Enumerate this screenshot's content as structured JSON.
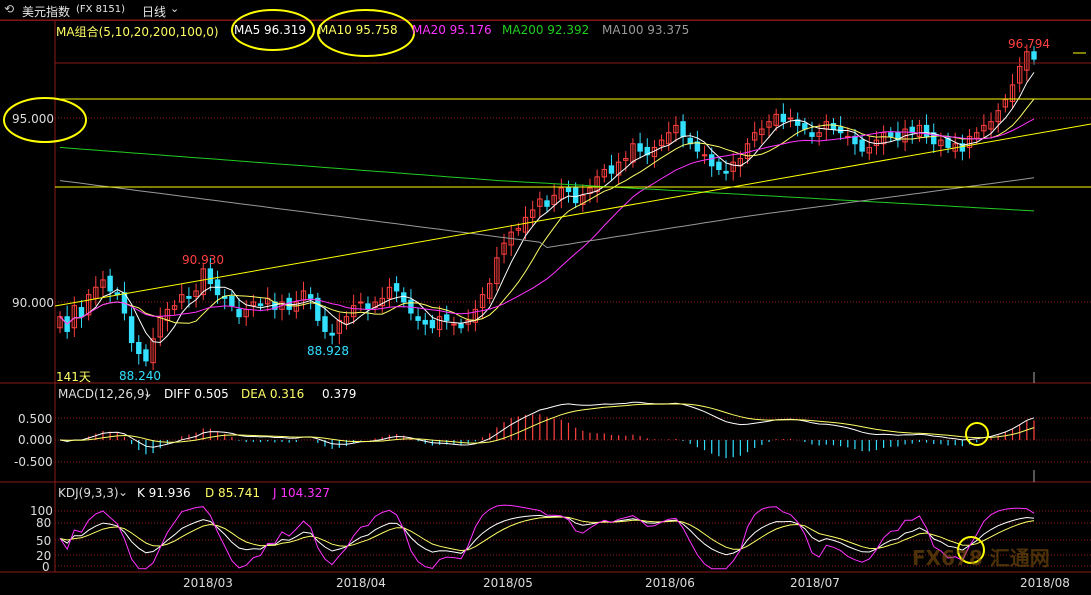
{
  "header": {
    "back_icon": "back-arrow-icon",
    "title": "美元指数",
    "code": "(FX 8151)",
    "period": "日线",
    "period_icon": "chevron-down-icon"
  },
  "main_panel": {
    "indicator_label": "MA组合(5,10,20,200,100,0)",
    "ma5": "MA5 96.319",
    "ma10": "MA10 95.758",
    "ma20": "MA20 95.176",
    "ma200": "MA200 92.392",
    "ma100": "MA100 93.375",
    "y_ticks": [
      "95.000",
      "90.000"
    ],
    "annotations": {
      "high_label": "96.794",
      "peak_label": "90.930",
      "low1_label": "88.240",
      "low2_label": "88.928",
      "days_label": "141天"
    }
  },
  "macd_panel": {
    "indicator_label": "MACD(12,26,9)",
    "diff": "DIFF 0.505",
    "dea": "DEA 0.316",
    "macd": "0.379",
    "y_ticks": [
      "0.500",
      "0.000",
      "-0.500"
    ]
  },
  "kdj_panel": {
    "indicator_label": "KDJ(9,3,3)",
    "k": "K 91.936",
    "d": "D 85.741",
    "j": "J 104.327",
    "y_ticks": [
      "100",
      "80",
      "50",
      "20",
      "0"
    ]
  },
  "x_axis": {
    "ticks": [
      "2018/03",
      "2018/04",
      "2018/05",
      "2018/06",
      "2018/07",
      "2018/08"
    ]
  },
  "watermark": "FX678 汇通网",
  "colors": {
    "up": "#ff4040",
    "down": "#33e0ff",
    "ma5": "#ffffff",
    "ma10": "#ffff66",
    "ma20": "#ff33ff",
    "ma200": "#22cc22",
    "ma100": "#999999",
    "grid": "#8b1a1a",
    "highlight": "#ffff00"
  },
  "chart_data": {
    "type": "candlestick",
    "title": "美元指数 (FX 8151) 日线",
    "x_range": [
      "2018/02",
      "2018/08"
    ],
    "price_range": [
      87.5,
      97.2
    ],
    "closes": [
      89.6,
      89.2,
      89.9,
      89.6,
      90.2,
      90.4,
      90.6,
      90.3,
      90.2,
      89.7,
      88.9,
      88.6,
      88.4,
      89.0,
      89.6,
      89.8,
      89.9,
      90.2,
      90.1,
      90.3,
      90.9,
      90.5,
      90.2,
      90.1,
      89.9,
      89.6,
      89.8,
      90.0,
      89.9,
      90.1,
      89.8,
      90.0,
      89.8,
      90.0,
      90.3,
      90.1,
      89.5,
      89.2,
      89.1,
      89.5,
      89.6,
      89.9,
      90.0,
      89.8,
      90.0,
      90.1,
      90.4,
      90.3,
      90.0,
      89.7,
      89.5,
      89.4,
      89.3,
      89.6,
      89.5,
      89.4,
      89.3,
      89.5,
      89.8,
      90.2,
      90.5,
      91.2,
      91.6,
      91.9,
      92.0,
      92.3,
      92.5,
      92.8,
      92.6,
      92.9,
      93.1,
      93.0,
      92.7,
      92.9,
      93.1,
      93.4,
      93.6,
      93.5,
      93.8,
      93.9,
      94.3,
      94.1,
      94.0,
      94.2,
      94.4,
      94.6,
      94.8,
      94.5,
      94.3,
      94.1,
      94.0,
      93.7,
      93.6,
      93.5,
      93.8,
      93.9,
      94.3,
      94.6,
      94.7,
      94.9,
      95.1,
      94.9,
      95.0,
      94.8,
      94.7,
      94.5,
      94.6,
      94.9,
      94.7,
      94.6,
      94.5,
      94.3,
      94.1,
      94.2,
      94.4,
      94.6,
      94.5,
      94.4,
      94.7,
      94.6,
      94.8,
      94.5,
      94.3,
      94.4,
      94.2,
      94.3,
      94.1,
      94.5,
      94.6,
      94.8,
      94.9,
      95.2,
      95.5,
      95.9,
      96.4,
      96.8,
      96.6
    ],
    "ma_lines": {
      "MA5": 96.319,
      "MA10": 95.758,
      "MA20": 95.176,
      "MA200": 92.392,
      "MA100": 93.375
    },
    "labels": {
      "high": 96.794,
      "swing_high": 90.93,
      "low_a": 88.24,
      "low_b": 88.928
    },
    "macd": {
      "diff": 0.505,
      "dea": 0.316,
      "macd": 0.379,
      "ylim": [
        -0.8,
        0.8
      ]
    },
    "kdj": {
      "k": 91.936,
      "d": 85.741,
      "j": 104.327,
      "ylim": [
        0,
        110
      ]
    },
    "xlabel": "",
    "ylabel": ""
  }
}
